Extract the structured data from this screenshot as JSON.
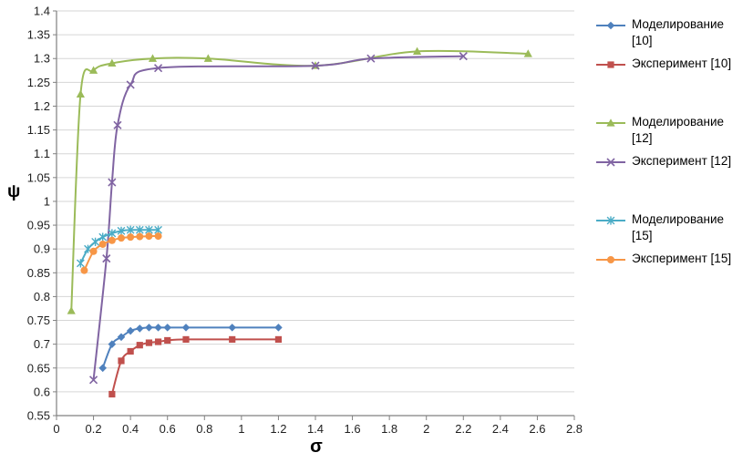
{
  "chart_data": {
    "type": "line",
    "title": "",
    "xlabel": "σ",
    "ylabel": "ψ",
    "xlim": [
      0,
      2.8
    ],
    "ylim": [
      0.55,
      1.4
    ],
    "xtick_step": 0.2,
    "ytick_step": 0.05,
    "grid": "horizontal",
    "legend_position": "right",
    "colors": {
      "gridline": "#d6d6d6",
      "axis": "#808080",
      "tick_label": "#1f1f1f"
    },
    "series": [
      {
        "name": "Моделирование [10]",
        "color": "#4F81BD",
        "marker": "diamond",
        "x": [
          0.25,
          0.3,
          0.35,
          0.4,
          0.45,
          0.5,
          0.55,
          0.6,
          0.7,
          0.95,
          1.2
        ],
        "y": [
          0.65,
          0.7,
          0.715,
          0.728,
          0.733,
          0.735,
          0.735,
          0.735,
          0.735,
          0.735,
          0.735
        ]
      },
      {
        "name": "Эксперимент [10]",
        "color": "#C0504D",
        "marker": "square",
        "x": [
          0.3,
          0.35,
          0.4,
          0.45,
          0.5,
          0.55,
          0.6,
          0.7,
          0.95,
          1.2
        ],
        "y": [
          0.595,
          0.665,
          0.685,
          0.698,
          0.703,
          0.705,
          0.708,
          0.71,
          0.71,
          0.71
        ]
      },
      {
        "name": "Моделирование [12]",
        "color": "#9BBB59",
        "marker": "triangle",
        "x": [
          0.08,
          0.13,
          0.2,
          0.3,
          0.52,
          0.82,
          1.4,
          1.95,
          2.55
        ],
        "y": [
          0.77,
          1.225,
          1.275,
          1.29,
          1.3,
          1.3,
          1.285,
          1.315,
          1.31
        ]
      },
      {
        "name": "Эксперимент [12]",
        "color": "#8064A2",
        "marker": "x",
        "x": [
          0.2,
          0.27,
          0.3,
          0.33,
          0.4,
          0.55,
          1.4,
          1.7,
          2.2
        ],
        "y": [
          0.625,
          0.88,
          1.04,
          1.16,
          1.245,
          1.28,
          1.285,
          1.3,
          1.305
        ]
      },
      {
        "name": "Моделирование [15]",
        "color": "#4BACC6",
        "marker": "star",
        "x": [
          0.13,
          0.17,
          0.21,
          0.25,
          0.3,
          0.35,
          0.4,
          0.45,
          0.5,
          0.55
        ],
        "y": [
          0.87,
          0.9,
          0.915,
          0.925,
          0.933,
          0.938,
          0.94,
          0.94,
          0.94,
          0.94
        ]
      },
      {
        "name": "Эксперимент [15]",
        "color": "#F79646",
        "marker": "circle",
        "x": [
          0.15,
          0.2,
          0.25,
          0.3,
          0.35,
          0.4,
          0.45,
          0.5,
          0.55
        ],
        "y": [
          0.855,
          0.895,
          0.91,
          0.918,
          0.923,
          0.925,
          0.926,
          0.927,
          0.927
        ]
      }
    ]
  }
}
